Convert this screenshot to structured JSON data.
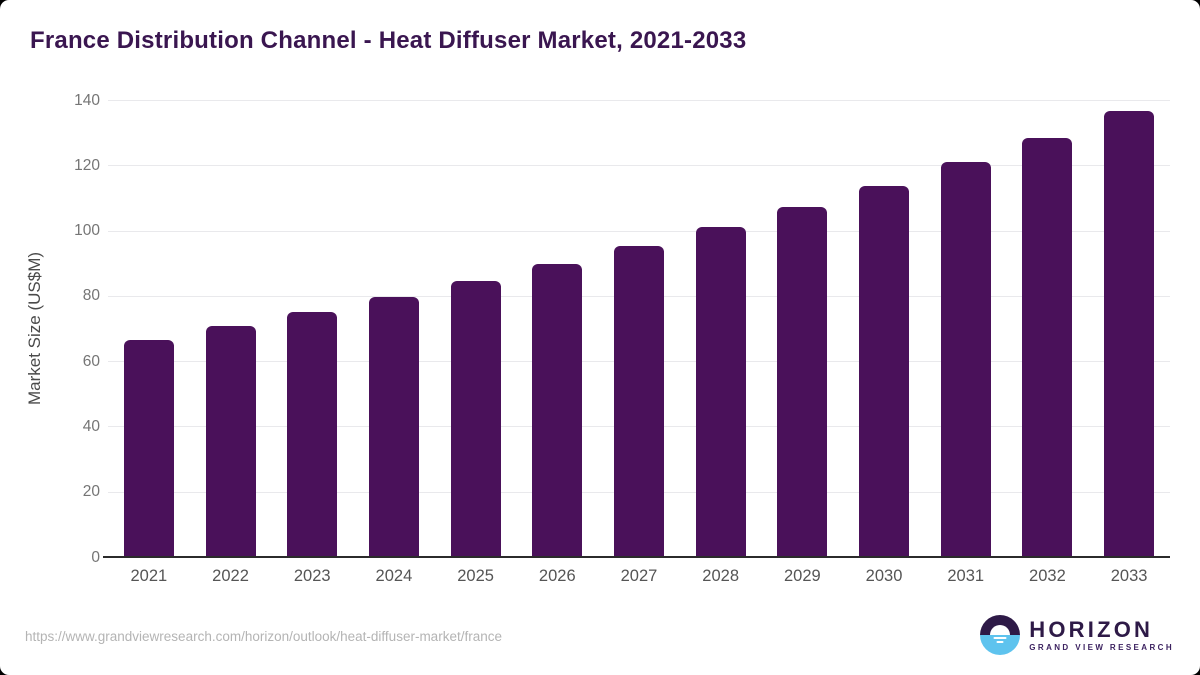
{
  "header": {
    "title": "France Distribution Channel - Heat Diffuser Market, 2021-2033",
    "title_color": "#3a1650"
  },
  "chart_data": {
    "type": "bar",
    "title": "France Distribution Channel - Heat Diffuser Market, 2021-2033",
    "categories": [
      "2021",
      "2022",
      "2023",
      "2024",
      "2025",
      "2026",
      "2027",
      "2028",
      "2029",
      "2030",
      "2031",
      "2032",
      "2033"
    ],
    "values": [
      66.6,
      70.7,
      75.1,
      79.7,
      84.6,
      89.8,
      95.2,
      101.0,
      107.2,
      113.8,
      120.9,
      128.4,
      136.5
    ],
    "xlabel": "",
    "ylabel": "Market Size (US$M)",
    "ylim": [
      0,
      140
    ],
    "yticks": [
      0,
      20,
      40,
      60,
      80,
      100,
      120,
      140
    ],
    "grid": "horizontal",
    "legend_position": "none",
    "bar_color": "#4a115a",
    "gridline_color": "#e9e9ec",
    "axis_line_color": "#2b2b2b"
  },
  "footer": {
    "source_url": "https://www.grandviewresearch.com/horizon/outlook/heat-diffuser-market/france",
    "logo": {
      "name": "HORIZON",
      "subtitle": "GRAND VIEW RESEARCH",
      "circle_top_color": "#2e1a47",
      "circle_bottom_color": "#5ec3ee"
    }
  }
}
